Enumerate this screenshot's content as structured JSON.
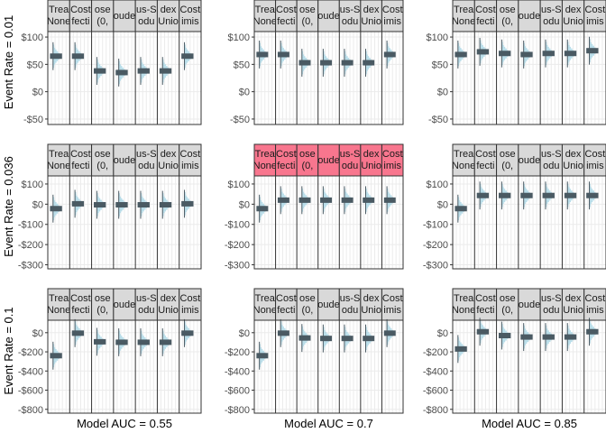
{
  "chart_data": {
    "type": "faceted-histogram",
    "row_titles": [
      "Event Rate = 0.01",
      "Event Rate = 0.036",
      "Event Rate = 0.1"
    ],
    "col_titles": [
      "Model AUC = 0.55",
      "Model AUC = 0.7",
      "Model AUC = 0.85"
    ],
    "strip_lines": [
      [
        "Trea",
        "None"
      ],
      [
        "Cost",
        "fecti"
      ],
      [
        "ose",
        "(0,"
      ],
      [
        "oude",
        ""
      ],
      [
        "us-S",
        "odu"
      ],
      [
        "dex",
        "Unio"
      ],
      [
        "Cost",
        "imis"
      ]
    ],
    "highlight_panel": {
      "row": 1,
      "col": 1
    },
    "rows": [
      {
        "ylim": [
          -60,
          110
        ],
        "ticks": [
          100,
          50,
          0,
          -50
        ],
        "tick_labels": [
          "$100",
          "$50",
          "$0",
          "-$50"
        ]
      },
      {
        "ylim": [
          -320,
          140
        ],
        "ticks": [
          100,
          0,
          -100,
          -200,
          -300
        ],
        "tick_labels": [
          "$100",
          "$0",
          "-$100",
          "-$200",
          "-$300"
        ]
      },
      {
        "ylim": [
          -840,
          130
        ],
        "ticks": [
          0,
          -200,
          -400,
          -600,
          -800
        ],
        "tick_labels": [
          "$0",
          "-$200",
          "-$400",
          "-$600",
          "-$800"
        ]
      }
    ],
    "values": [
      [
        [
          65,
          65,
          38,
          35,
          38,
          38,
          65
        ],
        [
          68,
          68,
          53,
          53,
          53,
          53,
          68
        ],
        [
          68,
          73,
          70,
          68,
          70,
          70,
          75
        ]
      ],
      [
        [
          -22,
          2,
          -3,
          -3,
          -3,
          -3,
          2
        ],
        [
          -22,
          20,
          20,
          20,
          20,
          20,
          20
        ],
        [
          -22,
          43,
          43,
          43,
          43,
          43,
          43
        ]
      ],
      [
        [
          -240,
          -5,
          -95,
          -100,
          -100,
          -100,
          -5
        ],
        [
          -240,
          -5,
          -55,
          -60,
          -60,
          -60,
          -5
        ],
        [
          -170,
          10,
          -30,
          -45,
          -45,
          -45,
          10
        ]
      ]
    ],
    "colors": {
      "strip_fill": "#d9d9d9",
      "strip_highlight": "#f8768e",
      "histogram": "#add8e6",
      "median_bar": "#4a5a63",
      "grid": "#ebebeb",
      "frame": "#333333"
    }
  }
}
